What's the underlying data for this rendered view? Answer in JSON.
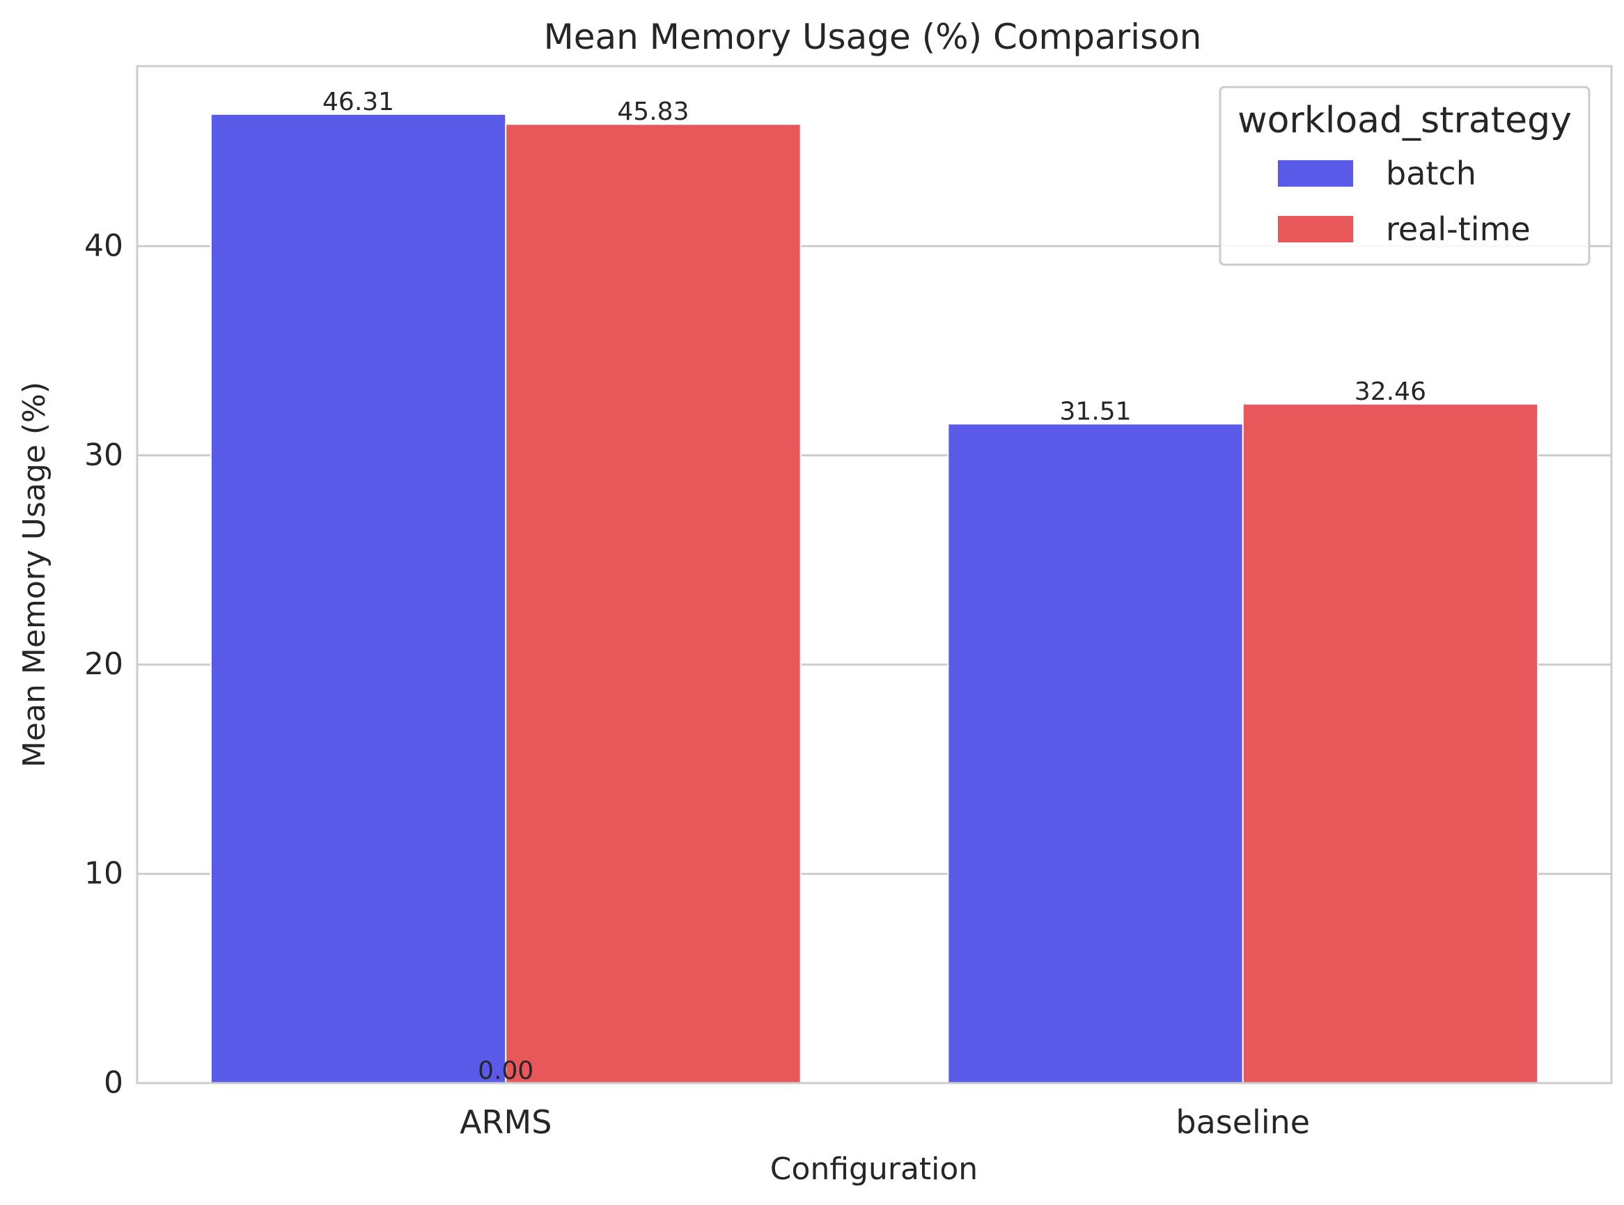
{
  "chart_data": {
    "type": "bar",
    "title": "Mean Memory Usage (%) Comparison",
    "xlabel": "Configuration",
    "ylabel": "Mean Memory Usage (%)",
    "categories": [
      "ARMS",
      "baseline"
    ],
    "ylim": [
      0,
      48.6
    ],
    "yticks": [
      0,
      10,
      20,
      30,
      40
    ],
    "grid": "y",
    "legend": {
      "title": "workload_strategy",
      "placement": "top-right"
    },
    "series": [
      {
        "name": "batch",
        "color": "#5a5ae8",
        "values": [
          46.31,
          31.51
        ]
      },
      {
        "name": "real-time",
        "color": "#e8575a",
        "values": [
          45.83,
          32.46
        ]
      }
    ],
    "annotations": [
      {
        "text": "46.31",
        "category": "ARMS",
        "series": "batch",
        "value": 46.31
      },
      {
        "text": "45.83",
        "category": "ARMS",
        "series": "real-time",
        "value": 45.83
      },
      {
        "text": "31.51",
        "category": "baseline",
        "series": "batch",
        "value": 31.51
      },
      {
        "text": "32.46",
        "category": "baseline",
        "series": "real-time",
        "value": 32.46
      },
      {
        "text": "0.00",
        "category": "ARMS",
        "series": "boundary",
        "value": 0
      }
    ]
  }
}
